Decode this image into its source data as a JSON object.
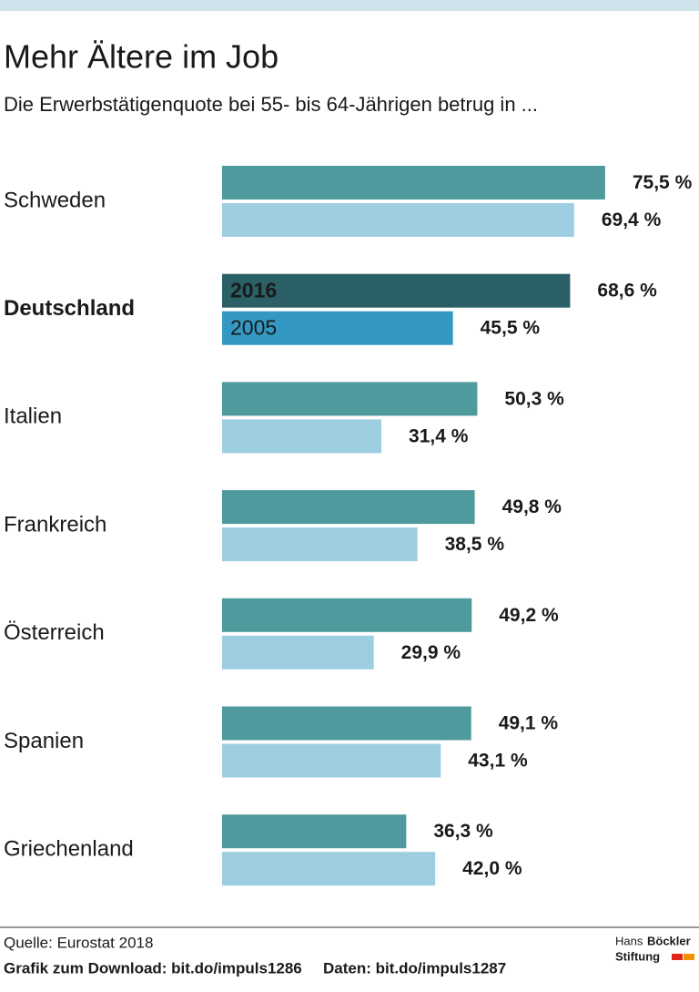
{
  "chart_data": {
    "type": "hbar",
    "title": "Mehr Ältere im Job",
    "subtitle": "Die Erwerbstätigenquote bei 55- bis 64-Jährigen betrug in ...",
    "categories": [
      "Schweden",
      "Deutschland",
      "Italien",
      "Frankreich",
      "Österreich",
      "Spanien",
      "Griechenland"
    ],
    "highlight_index": 1,
    "series": [
      {
        "name": "2016",
        "color": "#4e9a9c",
        "highlight_color": "#2a6066",
        "values": [
          75.5,
          68.6,
          50.3,
          49.8,
          49.2,
          49.1,
          36.3
        ],
        "value_labels": [
          "75,5 %",
          "68,6 %",
          "50,3 %",
          "49,8 %",
          "49,2 %",
          "49,1 %",
          "36,3 %"
        ]
      },
      {
        "name": "2005",
        "color": "#9ccde0",
        "highlight_color": "#3399c4",
        "values": [
          69.4,
          45.5,
          31.4,
          38.5,
          29.9,
          43.1,
          42.0
        ],
        "value_labels": [
          "69,4 %",
          "45,5 %",
          "31,4 %",
          "38,5 %",
          "29,9 %",
          "43,1 %",
          "42,0 %"
        ]
      }
    ],
    "xlim": [
      0,
      94
    ],
    "source": "Quelle: Eurostat 2018",
    "footer": [
      "Grafik zum Download: bit.do/impuls1286",
      "Daten: bit.do/impuls1287"
    ],
    "logo": [
      "Hans",
      "Böckler",
      "Stiftung"
    ]
  }
}
